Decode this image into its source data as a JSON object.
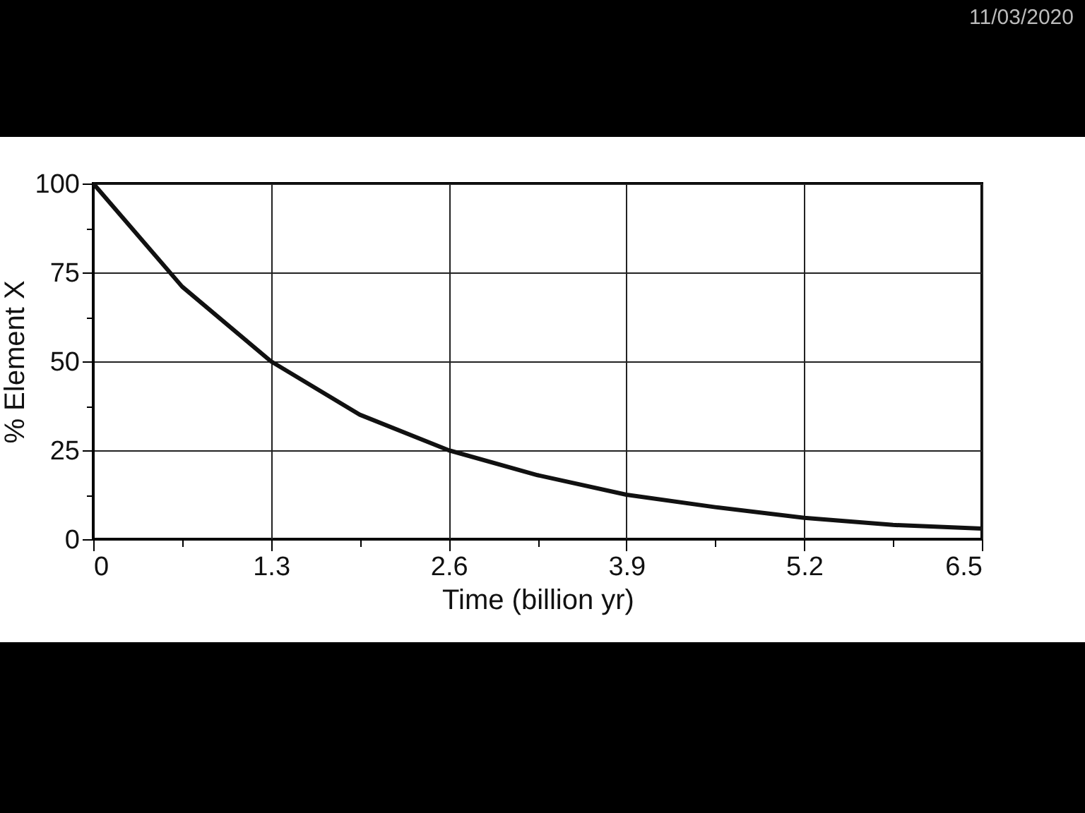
{
  "chart_data": {
    "type": "line",
    "xlabel": "Time (billion yr)",
    "ylabel": "% Element X",
    "annotations": [
      "11/03/2020"
    ],
    "x": [
      0,
      0.65,
      1.3,
      1.95,
      2.6,
      3.25,
      3.9,
      4.55,
      5.2,
      5.85,
      6.5
    ],
    "series": [
      {
        "color": "#111111",
        "values": [
          100,
          71,
          50,
          35,
          25,
          18,
          12.5,
          9,
          6,
          4,
          3
        ]
      }
    ],
    "xlim": [
      0,
      6.5
    ],
    "ylim": [
      0,
      100
    ],
    "xticks": [
      0,
      {
        "value": 0.65,
        "label": null
      },
      1.3,
      {
        "value": 1.95,
        "label": null
      },
      2.6,
      {
        "value": 3.25,
        "label": null
      },
      3.9,
      {
        "value": 4.55,
        "label": null
      },
      5.2,
      {
        "value": 5.85,
        "label": null
      },
      6.5
    ],
    "yticks": [
      0,
      {
        "value": 12.5,
        "label": null
      },
      25,
      {
        "value": 37.5,
        "label": null
      },
      50,
      {
        "value": 62.5,
        "label": null
      },
      75,
      {
        "value": 87.5,
        "label": null
      },
      100
    ],
    "grid": true,
    "marker": "none",
    "line_style": "solid"
  }
}
